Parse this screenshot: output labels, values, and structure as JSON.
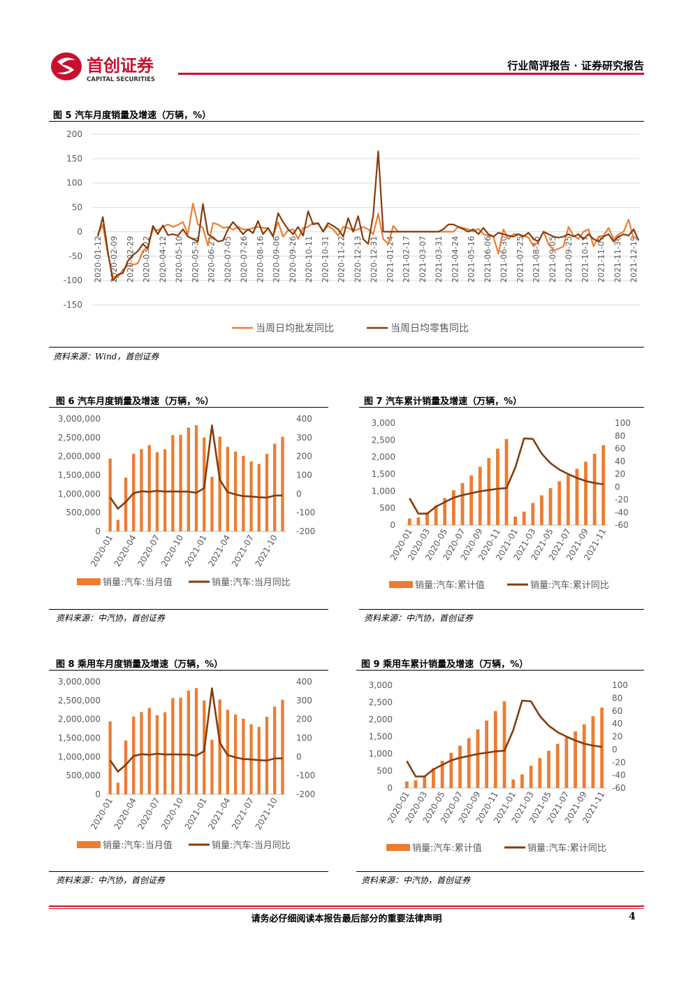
{
  "header": {
    "logo_cn": "首创证券",
    "logo_en": "CAPITAL SECURITIES",
    "report_type": "行业简评报告 · 证券研究报告"
  },
  "colors": {
    "brand_red": "#c8102e",
    "orange": "#ed7d31",
    "brown": "#843c0c"
  },
  "figures": {
    "fig5": {
      "title": "图 5 汽车月度销量及增速（万辆，%）",
      "source": "资料来源：Wind，首创证券"
    },
    "fig6": {
      "title": "图 6 汽车月度销量及增速（万辆，%）",
      "source": "资料来源：中汽协，首创证券"
    },
    "fig7": {
      "title": "图 7 汽车累计销量及增速（万辆，%）",
      "source": "资料来源：中汽协，首创证券"
    },
    "fig8": {
      "title": "图 8 乘用车月度销量及增速（万辆，%）",
      "source": "资料来源：中汽协，首创证券"
    },
    "fig9": {
      "title": "图 9 乘用车累计销量及增速（万辆，%）",
      "source": "资料来源：中汽协，首创证券"
    }
  },
  "footer": {
    "disclaimer": "请务必仔细阅读本报告最后部分的重要法律声明",
    "page_number": "4"
  },
  "chart_data": [
    {
      "id": "fig5",
      "type": "line",
      "ylim": [
        -150,
        200
      ],
      "yticks": [
        -150,
        -100,
        -50,
        0,
        50,
        100,
        150,
        200
      ],
      "x_tick_labels": [
        "2020-01-12",
        "2020-02-09",
        "2020-02-29",
        "2020-03-22",
        "2020-04-12",
        "2020-05-10",
        "2020-05-31",
        "2020-06-21",
        "2020-07-05",
        "2020-07-26",
        "2020-08-16",
        "2020-09-06",
        "2020-09-26",
        "2020-10-11",
        "2020-10-31",
        "2020-11-22",
        "2020-12-13",
        "2020-12-31",
        "2021-01-24",
        "2021-02-17",
        "2021-03-07",
        "2021-03-31",
        "2021-04-24",
        "2021-05-16",
        "2021-06-06",
        "2021-06-30",
        "2021-07-25",
        "2021-08-15",
        "2021-09-05",
        "2021-09-25",
        "2021-10-17",
        "2021-11-07",
        "2021-11-30",
        "2021-12-19"
      ],
      "legend_position": "bottom",
      "series": [
        {
          "name": "当周日均批发同比",
          "color": "#ed7d31",
          "values": [
            -5,
            14,
            -45,
            -92,
            -93,
            -78,
            -70,
            -68,
            -65,
            -40,
            -30,
            5,
            3,
            10,
            15,
            10,
            14,
            20,
            -5,
            58,
            15,
            8,
            -28,
            18,
            15,
            8,
            10,
            4,
            10,
            5,
            4,
            8,
            10,
            8,
            7,
            -8,
            20,
            -10,
            3,
            5,
            -15,
            8,
            10,
            18,
            16,
            2,
            12,
            5,
            -8,
            10,
            8,
            2,
            5,
            10,
            5,
            -5,
            37,
            -15,
            -25,
            12,
            0,
            0,
            0,
            0,
            0,
            0,
            0,
            0,
            0,
            0,
            0,
            0,
            10,
            8,
            5,
            0,
            6,
            -5,
            -8,
            -10,
            -45,
            5,
            -15,
            -5,
            -5,
            -8,
            -12,
            -30,
            -20,
            0,
            -25,
            -38,
            -35,
            -30,
            10,
            -8,
            -15,
            0,
            5,
            -30,
            -10,
            -8,
            8,
            -15,
            -5,
            0,
            25,
            -15
          ]
        },
        {
          "name": "当周日均零售同比",
          "color": "#843c0c",
          "values": [
            -10,
            30,
            -40,
            -100,
            -88,
            -85,
            -60,
            -48,
            -40,
            -25,
            -35,
            12,
            -5,
            13,
            -7,
            -5,
            -8,
            5,
            -10,
            -15,
            -20,
            57,
            -5,
            -12,
            -20,
            -18,
            5,
            20,
            8,
            -5,
            5,
            -3,
            22,
            -5,
            8,
            -10,
            38,
            20,
            5,
            -5,
            10,
            -8,
            42,
            15,
            18,
            0,
            18,
            12,
            5,
            -10,
            28,
            0,
            32,
            -15,
            -25,
            35,
            165,
            0,
            0,
            0,
            0,
            0,
            0,
            0,
            0,
            0,
            0,
            0,
            0,
            5,
            15,
            15,
            10,
            5,
            0,
            5,
            -5,
            8,
            -5,
            -10,
            -2,
            -5,
            -8,
            -10,
            -5,
            -10,
            -2,
            -15,
            -20,
            0,
            -5,
            -10,
            -12,
            -10,
            -5,
            -10,
            -5,
            -15,
            -5,
            -15,
            -20,
            -10,
            -5,
            -20,
            -10,
            -5,
            -8,
            5,
            -18
          ]
        }
      ]
    },
    {
      "id": "fig6",
      "type": "bar",
      "categories": [
        "2020-01",
        "2020-02",
        "2020-03",
        "2020-04",
        "2020-05",
        "2020-06",
        "2020-07",
        "2020-08",
        "2020-09",
        "2020-10",
        "2020-11",
        "2020-12",
        "2021-01",
        "2021-02",
        "2021-03",
        "2021-04",
        "2021-05",
        "2021-06",
        "2021-07",
        "2021-08",
        "2021-09",
        "2021-10",
        "2021-11"
      ],
      "x_tick_labels": [
        "2020-01",
        "2020-04",
        "2020-07",
        "2020-10",
        "2021-01",
        "2021-04",
        "2021-07",
        "2021-10"
      ],
      "ylim_left": [
        0,
        3000000
      ],
      "yticks_left": [
        "0",
        "500,000",
        "1,000,000",
        "1,500,000",
        "2,000,000",
        "2,500,000",
        "3,000,000"
      ],
      "ylim_right": [
        -200,
        400
      ],
      "yticks_right": [
        "-200",
        "-100",
        "0",
        "100",
        "200",
        "300",
        "400"
      ],
      "series": [
        {
          "name": "销量:汽车:当月值",
          "kind": "bar",
          "axis": "left",
          "color": "#ed7d31",
          "values": [
            1941000,
            310000,
            1434000,
            2070000,
            2193000,
            2302000,
            2112000,
            2187000,
            2565000,
            2573000,
            2768000,
            2831000,
            2503000,
            1455000,
            2526000,
            2252000,
            2128000,
            2015000,
            1864000,
            1799000,
            2069000,
            2334000,
            2522000
          ]
        },
        {
          "name": "销量:汽车:当月同比",
          "kind": "line",
          "axis": "right",
          "color": "#843c0c",
          "values": [
            -18,
            -79,
            -43,
            4,
            14,
            11,
            16,
            12,
            13,
            12,
            12,
            6,
            30,
            365,
            75,
            9,
            -3,
            -12,
            -14,
            -18,
            -20,
            -9,
            -9
          ]
        }
      ],
      "legend_position": "bottom"
    },
    {
      "id": "fig7",
      "type": "bar",
      "categories": [
        "2020-01",
        "2020-02",
        "2020-03",
        "2020-04",
        "2020-05",
        "2020-06",
        "2020-07",
        "2020-08",
        "2020-09",
        "2020-10",
        "2020-11",
        "2020-12",
        "2021-01",
        "2021-02",
        "2021-03",
        "2021-04",
        "2021-05",
        "2021-06",
        "2021-07",
        "2021-08",
        "2021-09",
        "2021-10",
        "2021-11"
      ],
      "x_tick_labels": [
        "2020-01",
        "2020-03",
        "2020-05",
        "2020-07",
        "2020-09",
        "2020-11",
        "2021-01",
        "2021-03",
        "2021-05",
        "2021-07",
        "2021-09",
        "2021-11"
      ],
      "ylim_left": [
        0,
        3000
      ],
      "yticks_left": [
        "0",
        "500",
        "1,000",
        "1,500",
        "2,000",
        "2,500",
        "3,000"
      ],
      "ylim_right": [
        -60,
        100
      ],
      "yticks_right": [
        "-60",
        "-40",
        "-20",
        "0",
        "20",
        "40",
        "60",
        "80",
        "100"
      ],
      "series": [
        {
          "name": "销量:汽车:累计值",
          "kind": "bar",
          "axis": "left",
          "color": "#ed7d31",
          "values": [
            194,
            225,
            367,
            576,
            795,
            1026,
            1237,
            1456,
            1713,
            1970,
            2247,
            2531,
            250,
            396,
            649,
            874,
            1086,
            1289,
            1475,
            1655,
            1862,
            2096,
            2348
          ]
        },
        {
          "name": "销量:汽车:累计同比",
          "kind": "line",
          "axis": "right",
          "color": "#843c0c",
          "values": [
            -18,
            -42,
            -42,
            -31,
            -24,
            -17,
            -13,
            -10,
            -7,
            -5,
            -3,
            -2,
            30,
            76,
            75,
            52,
            37,
            27,
            20,
            14,
            9,
            6,
            4
          ]
        }
      ],
      "legend_position": "bottom"
    },
    {
      "id": "fig8",
      "type": "bar",
      "categories": [
        "2020-01",
        "2020-02",
        "2020-03",
        "2020-04",
        "2020-05",
        "2020-06",
        "2020-07",
        "2020-08",
        "2020-09",
        "2020-10",
        "2020-11",
        "2020-12",
        "2021-01",
        "2021-02",
        "2021-03",
        "2021-04",
        "2021-05",
        "2021-06",
        "2021-07",
        "2021-08",
        "2021-09",
        "2021-10",
        "2021-11"
      ],
      "x_tick_labels": [
        "2020-01",
        "2020-04",
        "2020-07",
        "2020-10",
        "2021-01",
        "2021-04",
        "2021-07",
        "2021-10"
      ],
      "ylim_left": [
        0,
        3000000
      ],
      "yticks_left": [
        "0",
        "500,000",
        "1,000,000",
        "1,500,000",
        "2,000,000",
        "2,500,000",
        "3,000,000"
      ],
      "ylim_right": [
        -200,
        400
      ],
      "yticks_right": [
        "-200",
        "-100",
        "0",
        "100",
        "200",
        "300",
        "400"
      ],
      "series": [
        {
          "name": "销量:汽车:当月值",
          "kind": "bar",
          "axis": "left",
          "color": "#ed7d31",
          "values": [
            1941000,
            310000,
            1434000,
            2070000,
            2193000,
            2302000,
            2112000,
            2187000,
            2565000,
            2573000,
            2768000,
            2831000,
            2503000,
            1455000,
            2526000,
            2252000,
            2128000,
            2015000,
            1864000,
            1799000,
            2069000,
            2334000,
            2522000
          ]
        },
        {
          "name": "销量:汽车:当月同比",
          "kind": "line",
          "axis": "right",
          "color": "#843c0c",
          "values": [
            -18,
            -79,
            -43,
            4,
            14,
            11,
            16,
            12,
            13,
            12,
            12,
            6,
            30,
            365,
            75,
            9,
            -3,
            -12,
            -14,
            -18,
            -20,
            -9,
            -9
          ]
        }
      ],
      "legend_position": "bottom"
    },
    {
      "id": "fig9",
      "type": "bar",
      "categories": [
        "2020-01",
        "2020-02",
        "2020-03",
        "2020-04",
        "2020-05",
        "2020-06",
        "2020-07",
        "2020-08",
        "2020-09",
        "2020-10",
        "2020-11",
        "2020-12",
        "2021-01",
        "2021-02",
        "2021-03",
        "2021-04",
        "2021-05",
        "2021-06",
        "2021-07",
        "2021-08",
        "2021-09",
        "2021-10",
        "2021-11"
      ],
      "x_tick_labels": [
        "2020-01",
        "2020-03",
        "2020-05",
        "2020-07",
        "2020-09",
        "2020-11",
        "2021-01",
        "2021-03",
        "2021-05",
        "2021-07",
        "2021-09",
        "2021-11"
      ],
      "ylim_left": [
        0,
        3000
      ],
      "yticks_left": [
        "0",
        "500",
        "1,000",
        "1,500",
        "2,000",
        "2,500",
        "3,000"
      ],
      "ylim_right": [
        -60,
        100
      ],
      "yticks_right": [
        "-60",
        "-40",
        "-20",
        "0",
        "20",
        "40",
        "60",
        "80",
        "100"
      ],
      "series": [
        {
          "name": "销量:汽车:累计值",
          "kind": "bar",
          "axis": "left",
          "color": "#ed7d31",
          "values": [
            194,
            225,
            367,
            576,
            795,
            1026,
            1237,
            1456,
            1713,
            1970,
            2247,
            2531,
            250,
            396,
            649,
            874,
            1086,
            1289,
            1475,
            1655,
            1862,
            2096,
            2348
          ]
        },
        {
          "name": "销量:汽车:累计同比",
          "kind": "line",
          "axis": "right",
          "color": "#843c0c",
          "values": [
            -18,
            -42,
            -42,
            -31,
            -24,
            -17,
            -13,
            -10,
            -7,
            -5,
            -3,
            -2,
            30,
            76,
            75,
            52,
            37,
            27,
            20,
            14,
            9,
            6,
            4
          ]
        }
      ],
      "legend_position": "bottom"
    }
  ]
}
